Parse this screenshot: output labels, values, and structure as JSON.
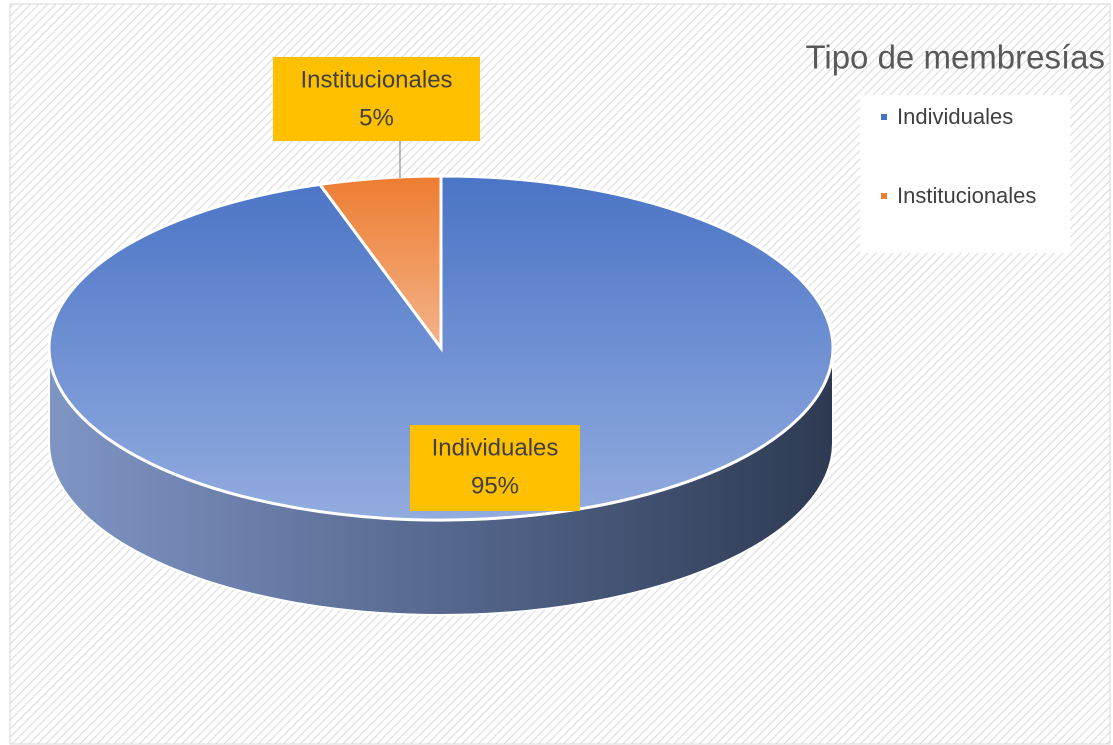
{
  "chart_data": {
    "type": "pie",
    "title": "Tipo de membresías",
    "categories": [
      "Individuales",
      "Institucionales"
    ],
    "values": [
      95,
      5
    ],
    "value_labels": [
      "95%",
      "5%"
    ],
    "colors": [
      "#4472c4",
      "#ed7d31"
    ],
    "legend": "right"
  }
}
